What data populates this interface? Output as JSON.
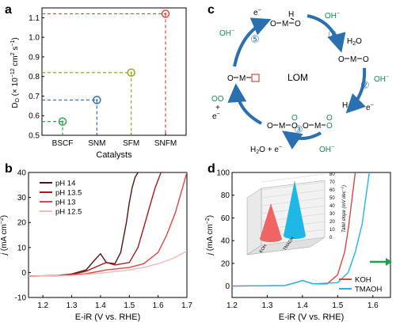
{
  "panel_labels": {
    "a": "a",
    "b": "b",
    "c": "c",
    "d": "d"
  },
  "chart_data": [
    {
      "panel": "a",
      "type": "scatter",
      "categories": [
        "BSCF",
        "SNM",
        "SFM",
        "SNFM"
      ],
      "values": [
        0.57,
        0.68,
        0.82,
        1.12
      ],
      "colors": [
        "#2e9e4f",
        "#2a6fb0",
        "#9aa61c",
        "#e0453a"
      ],
      "xlabel": "Catalysts",
      "ylabel_pre": "D",
      "ylabel_sub": "O",
      "ylabel_mid": " (× 10",
      "ylabel_sup": "−12",
      "ylabel_unit": " cm",
      "ylabel_sup2": "2",
      "ylabel_end": " s",
      "ylabel_sup3": "−1",
      "ylabel_close": ")",
      "ylim": [
        0.5,
        1.15
      ],
      "yticks": [
        "0.5",
        "0.6",
        "0.7",
        "0.8",
        "0.9",
        "1.0",
        "1.1"
      ],
      "yticks_num": [
        0.5,
        0.6,
        0.7,
        0.8,
        0.9,
        1.0,
        1.1
      ],
      "guide_lines": "dashed"
    },
    {
      "panel": "b",
      "type": "line",
      "xlabel": "E-iR (V vs. RHE)",
      "ylabel_i": "j",
      "ylabel_rest": " (mA cm",
      "ylabel_sup": "−2",
      "ylabel_close": ")",
      "xlim": [
        1.15,
        1.7
      ],
      "ylim": [
        -10,
        40
      ],
      "xticks": [
        "1.2",
        "1.3",
        "1.4",
        "1.5",
        "1.6",
        "1.7"
      ],
      "xticks_num": [
        1.2,
        1.3,
        1.4,
        1.5,
        1.6,
        1.7
      ],
      "yticks": [
        "-10",
        "0",
        "10",
        "20",
        "30",
        "40"
      ],
      "yticks_num": [
        -10,
        0,
        10,
        20,
        30,
        40
      ],
      "legend_position": "top-left",
      "series": [
        {
          "name": "pH 14",
          "color": "#5a0f12",
          "x": [
            1.15,
            1.25,
            1.3,
            1.35,
            1.38,
            1.4,
            1.42,
            1.45,
            1.47,
            1.49,
            1.5,
            1.51,
            1.52,
            1.53
          ],
          "y": [
            -1.5,
            -1.2,
            -0.6,
            1.0,
            5.0,
            7.5,
            4.0,
            3.5,
            8.0,
            20.0,
            28.0,
            34.0,
            38.0,
            40.0
          ]
        },
        {
          "name": "pH 13.5",
          "color": "#a8191e",
          "x": [
            1.15,
            1.25,
            1.3,
            1.35,
            1.4,
            1.42,
            1.45,
            1.5,
            1.53,
            1.55,
            1.57,
            1.59,
            1.61
          ],
          "y": [
            -1.5,
            -1.3,
            -0.8,
            0.5,
            3.0,
            4.0,
            3.0,
            4.0,
            10.0,
            18.0,
            26.0,
            34.0,
            40.0
          ]
        },
        {
          "name": "pH 13",
          "color": "#e0453a",
          "x": [
            1.15,
            1.25,
            1.35,
            1.42,
            1.5,
            1.55,
            1.6,
            1.63,
            1.66,
            1.69,
            1.7
          ],
          "y": [
            -1.5,
            -1.3,
            -0.5,
            1.0,
            2.0,
            3.5,
            8.0,
            15.0,
            24.0,
            36.0,
            40.0
          ]
        },
        {
          "name": "pH 12.5",
          "color": "#f2b8b6",
          "x": [
            1.15,
            1.3,
            1.4,
            1.5,
            1.55,
            1.6,
            1.65,
            1.7
          ],
          "y": [
            -1.5,
            -1.2,
            -0.3,
            1.0,
            2.0,
            3.5,
            5.5,
            8.5
          ]
        }
      ]
    },
    {
      "panel": "d",
      "type": "line",
      "xlabel": "E-iR (V vs. RHE)",
      "ylabel_i": "j",
      "ylabel_rest": " (mA cm",
      "ylabel_sup": "−2",
      "ylabel_close": ")",
      "xlim": [
        1.2,
        1.65
      ],
      "ylim": [
        -10,
        100
      ],
      "xticks": [
        "1.2",
        "1.3",
        "1.4",
        "1.5",
        "1.6"
      ],
      "xticks_num": [
        1.2,
        1.3,
        1.4,
        1.5,
        1.6
      ],
      "yticks": [
        "0",
        "20",
        "40",
        "60",
        "80",
        "100"
      ],
      "yticks_num": [
        0,
        20,
        40,
        60,
        80,
        100
      ],
      "legend_position": "bottom-right",
      "series": [
        {
          "name": "KOH",
          "color": "#e0453a",
          "x": [
            1.2,
            1.35,
            1.38,
            1.4,
            1.43,
            1.47,
            1.5,
            1.52,
            1.53,
            1.54,
            1.55
          ],
          "y": [
            0,
            0.5,
            3,
            5,
            2,
            2,
            10,
            30,
            50,
            75,
            100
          ]
        },
        {
          "name": "TMAOH",
          "color": "#1fb8e6",
          "x": [
            1.2,
            1.35,
            1.38,
            1.4,
            1.43,
            1.5,
            1.53,
            1.55,
            1.57,
            1.58,
            1.59
          ],
          "y": [
            0,
            0.5,
            3,
            5,
            2,
            3,
            12,
            30,
            55,
            78,
            100
          ]
        }
      ],
      "inset": {
        "type": "bar3d",
        "categories": [
          "KOH",
          "TMAOH"
        ],
        "values": [
          45,
          70
        ],
        "colors": [
          "#f06464",
          "#1fb8e6"
        ],
        "zlabel": "Tafel slope (mV dec",
        "zlabel_sup": "−1",
        "zlabel_close": ")",
        "zticks": [
          "0",
          "10",
          "20",
          "30",
          "40",
          "50",
          "60",
          "70",
          "80"
        ],
        "zticks_num": [
          0,
          10,
          20,
          30,
          40,
          50,
          60,
          70,
          80
        ]
      }
    }
  ],
  "mechanism": {
    "center_label": "LOM",
    "hydroxide": "OH",
    "sup_minus": "−",
    "water_h2o": "H",
    "water_sub": "2",
    "water_o": "O",
    "electron": "e",
    "plus": "+",
    "H": "H",
    "oxygen": "O",
    "metal": "M",
    "step_nums": [
      "①",
      "②",
      "③",
      "④",
      "⑤"
    ],
    "colors": {
      "hydroxide": "#0c8e4e",
      "arrow": "#2a6fb0",
      "vacancy": "#e0453a"
    }
  }
}
